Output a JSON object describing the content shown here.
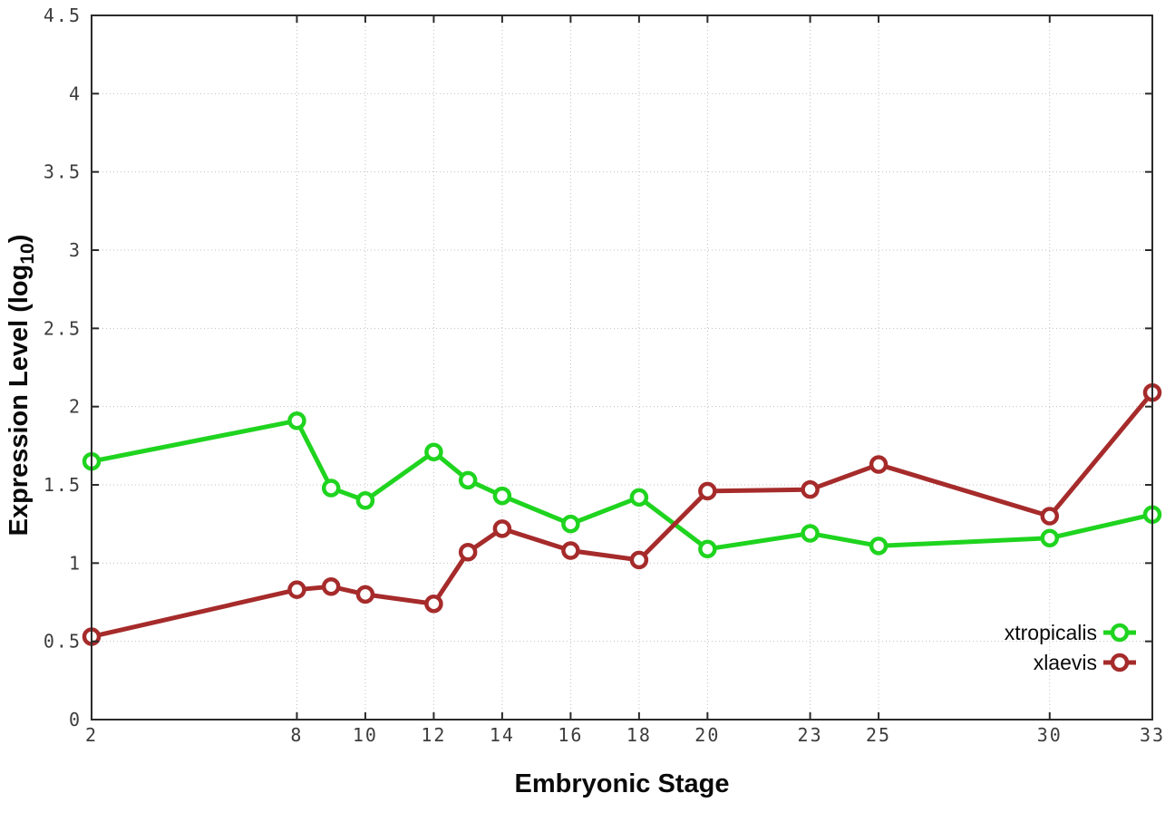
{
  "page": {
    "background": "#ffffff"
  },
  "chart_data": {
    "type": "line",
    "title": "",
    "xlabel": "Embryonic Stage",
    "ylabel": "Expression Level (log10)",
    "ylabel_parts": {
      "main": "Expression Level (log",
      "sub": "10",
      "close": ")"
    },
    "x": [
      2,
      8,
      9,
      10,
      12,
      13,
      14,
      16,
      18,
      20,
      23,
      25,
      30,
      33
    ],
    "series": [
      {
        "name": "xtropicalis",
        "color": "#1fd41f",
        "marker": "open-circle",
        "values": [
          1.65,
          1.91,
          1.48,
          1.4,
          1.71,
          1.53,
          1.43,
          1.25,
          1.42,
          1.09,
          1.19,
          1.11,
          1.16,
          1.31
        ]
      },
      {
        "name": "xlaevis",
        "color": "#a62b2b",
        "marker": "open-circle",
        "values": [
          0.53,
          0.83,
          0.85,
          0.8,
          0.74,
          1.07,
          1.22,
          1.08,
          1.02,
          1.46,
          1.47,
          1.63,
          1.3,
          2.09
        ]
      }
    ],
    "xlim": [
      2,
      33
    ],
    "ylim": [
      0,
      4.5
    ],
    "xticks": {
      "values": [
        2,
        8,
        10,
        12,
        14,
        16,
        18,
        20,
        23,
        25,
        30,
        33
      ],
      "labels": [
        "2",
        "8",
        "10",
        "12",
        "14",
        "16",
        "18",
        "20",
        "23",
        "25",
        "30",
        "33"
      ]
    },
    "yticks": {
      "values": [
        0,
        0.5,
        1,
        1.5,
        2,
        2.5,
        3,
        3.5,
        4,
        4.5
      ],
      "labels": [
        "0",
        "0.5",
        "1",
        "1.5",
        "2",
        "2.5",
        "3",
        "3.5",
        "4",
        "4.5"
      ]
    },
    "grid": true,
    "grid_style": "dotted",
    "legend_position": "inside-bottom-right",
    "colors": {
      "axis": "#2b2b2b",
      "grid": "#c0c0c0",
      "tick_label": "#3d3d3d",
      "marker_fill": "#ffffff"
    }
  }
}
